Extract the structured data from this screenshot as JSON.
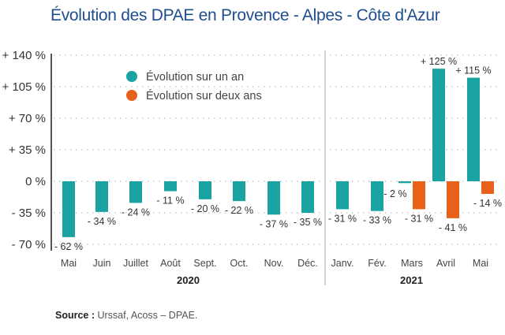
{
  "chart_data": {
    "type": "bar",
    "title": "Évolution des DPAE en Provence - Alpes - Côte d'Azur",
    "xlabel": "",
    "ylabel": "",
    "ylim": [
      -70,
      140
    ],
    "yticks": [
      140,
      105,
      70,
      35,
      0,
      -35,
      -70
    ],
    "ytick_labels": [
      "+ 140 %",
      "+ 105 %",
      "+ 70 %",
      "+ 35 %",
      "0 %",
      "- 35 %",
      "- 70 %"
    ],
    "grid": true,
    "legend_position": "top-left",
    "colors": {
      "one_year": "#1aa3a3",
      "two_years": "#e8611a"
    },
    "categories": [
      "Mai",
      "Juin",
      "Juillet",
      "Août",
      "Sept.",
      "Oct.",
      "Nov.",
      "Déc.",
      "Janv.",
      "Fév.",
      "Mars",
      "Avril",
      "Mai"
    ],
    "groups": [
      {
        "label": "2020",
        "from": 0,
        "to": 7
      },
      {
        "label": "2021",
        "from": 8,
        "to": 12
      }
    ],
    "series": [
      {
        "name": "Évolution sur un an",
        "values": [
          -62,
          -34,
          -24,
          -11,
          -20,
          -22,
          -37,
          -35,
          -31,
          -33,
          -2,
          125,
          115
        ],
        "labels": [
          "- 62 %",
          "- 34 %",
          "- 24 %",
          "- 11 %",
          "- 20 %",
          "- 22 %",
          "- 37 %",
          "- 35 %",
          "- 31 %",
          "- 33 %",
          "- 2 %",
          "+ 125 %",
          "+ 115 %"
        ]
      },
      {
        "name": "Évolution sur deux ans",
        "values": [
          null,
          null,
          null,
          null,
          null,
          null,
          null,
          null,
          null,
          null,
          -31,
          -41,
          -14
        ],
        "labels": [
          null,
          null,
          null,
          null,
          null,
          null,
          null,
          null,
          null,
          null,
          "- 31 %",
          "- 41 %",
          "- 14 %"
        ]
      }
    ]
  },
  "source": {
    "label": "Source :",
    "text": " Urssaf, Acoss – DPAE."
  }
}
